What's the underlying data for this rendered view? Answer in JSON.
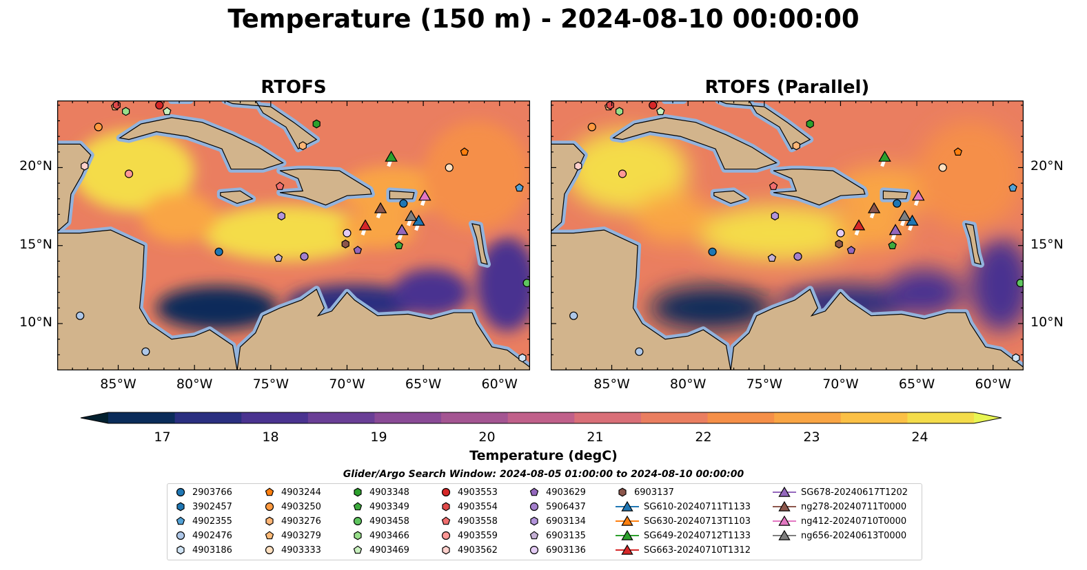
{
  "title": "Temperature (150 m) - 2024-08-10 00:00:00",
  "panels": [
    {
      "title": "RTOFS"
    },
    {
      "title": "RTOFS (Parallel)"
    }
  ],
  "colors": {
    "land": "#d2b48c",
    "shelf": "#93b3dc",
    "deep_dark": "#03202f",
    "colormap": [
      "#03202f",
      "#0b2c5a",
      "#2a2f80",
      "#4a3390",
      "#6a3f96",
      "#8a4a96",
      "#a45592",
      "#c0608a",
      "#d96f78",
      "#ea7e60",
      "#f58f48",
      "#f9a544",
      "#fbc046",
      "#f4dc4a",
      "#e8f553"
    ]
  },
  "chart_data": {
    "type": "heatmap",
    "variable": "Temperature (150 m)",
    "units": "degC",
    "colorbar": {
      "label": "Temperature (degC)",
      "range": [
        16.5,
        24.5
      ],
      "ticks": [
        17,
        18,
        19,
        20,
        21,
        22,
        23,
        24
      ],
      "tick_labels": [
        "17",
        "18",
        "19",
        "20",
        "21",
        "22",
        "23",
        "24"
      ],
      "extend": "both"
    },
    "xaxis": {
      "range": [
        -89,
        -58
      ],
      "ticks": [
        -85,
        -80,
        -75,
        -70,
        -65,
        -60
      ],
      "tick_labels": [
        "85°W",
        "80°W",
        "75°W",
        "70°W",
        "65°W",
        "60°W"
      ]
    },
    "yaxis": {
      "range": [
        7,
        24.3
      ],
      "ticks": [
        10,
        15,
        20
      ],
      "tick_labels": [
        "10°N",
        "15°N",
        "20°N"
      ]
    },
    "search_window": "Glider/Argo Search Window: 2024-08-05 01:00:00 to 2024-08-10 00:00:00",
    "warm_regions": [
      {
        "lon": -84,
        "lat": 19.8,
        "rx": 4,
        "ry": 2.6,
        "level": 0.96
      },
      {
        "lon": -74,
        "lat": 15.8,
        "rx": 5.5,
        "ry": 1.8,
        "level": 0.95
      },
      {
        "lon": -67,
        "lat": 18.5,
        "rx": 3.5,
        "ry": 1.6,
        "level": 0.8
      },
      {
        "lon": -61.5,
        "lat": 19.5,
        "rx": 3.5,
        "ry": 3.5,
        "level": 0.72
      },
      {
        "lon": -81,
        "lat": 16.8,
        "rx": 2.5,
        "ry": 1.6,
        "level": 0.82
      },
      {
        "lon": -68,
        "lat": 16,
        "rx": 2.5,
        "ry": 1.2,
        "level": 0.82
      }
    ],
    "cold_regions": [
      {
        "lon": -78.5,
        "lat": 11,
        "rx": 4,
        "ry": 1.4,
        "level": 0.05
      },
      {
        "lon": -69.5,
        "lat": 11.3,
        "rx": 4.5,
        "ry": 1.2,
        "level": 0.12
      },
      {
        "lon": -64.5,
        "lat": 12,
        "rx": 2.5,
        "ry": 1.5,
        "level": 0.22
      },
      {
        "lon": -59.5,
        "lat": 12.5,
        "rx": 2,
        "ry": 3,
        "level": 0.2
      }
    ],
    "land": [
      {
        "name": "Cuba",
        "points": [
          [
            -84.9,
            21.9
          ],
          [
            -83.5,
            22.8
          ],
          [
            -81.5,
            23.2
          ],
          [
            -79.5,
            22.9
          ],
          [
            -77.5,
            22.1
          ],
          [
            -75.8,
            21.3
          ],
          [
            -74.2,
            20.3
          ],
          [
            -75.5,
            19.9
          ],
          [
            -77.6,
            19.9
          ],
          [
            -78.2,
            21.2
          ],
          [
            -80.5,
            22.0
          ],
          [
            -82.5,
            22.3
          ],
          [
            -84.3,
            21.8
          ]
        ]
      },
      {
        "name": "Hispaniola",
        "points": [
          [
            -74.4,
            19.8
          ],
          [
            -73.2,
            19.9
          ],
          [
            -72.5,
            19.9
          ],
          [
            -70.5,
            19.8
          ],
          [
            -68.5,
            18.6
          ],
          [
            -68.4,
            18.3
          ],
          [
            -70.0,
            18.2
          ],
          [
            -71.4,
            17.6
          ],
          [
            -72.8,
            18.1
          ],
          [
            -74.4,
            18.4
          ],
          [
            -72.9,
            18.5
          ],
          [
            -73.2,
            19.3
          ]
        ]
      },
      {
        "name": "Jamaica",
        "points": [
          [
            -78.3,
            18.4
          ],
          [
            -77.0,
            18.5
          ],
          [
            -76.2,
            18.0
          ],
          [
            -77.2,
            17.7
          ],
          [
            -78.3,
            18.2
          ]
        ]
      },
      {
        "name": "Puerto Rico",
        "points": [
          [
            -67.2,
            18.5
          ],
          [
            -65.6,
            18.4
          ],
          [
            -65.7,
            18.0
          ],
          [
            -67.2,
            18.0
          ]
        ]
      },
      {
        "name": "Lesser Antilles",
        "points": [
          [
            -61.8,
            16.4
          ],
          [
            -61.3,
            16.3
          ],
          [
            -61.0,
            14.5
          ],
          [
            -60.8,
            13.8
          ],
          [
            -61.2,
            13.9
          ],
          [
            -61.5,
            15.5
          ]
        ]
      },
      {
        "name": "Yucatan",
        "points": [
          [
            -89,
            21.5
          ],
          [
            -87.5,
            21.5
          ],
          [
            -86.8,
            20.8
          ],
          [
            -87.4,
            19.5
          ],
          [
            -88.1,
            18.3
          ],
          [
            -88.3,
            16.5
          ],
          [
            -89,
            15.9
          ]
        ]
      },
      {
        "name": "Central America",
        "points": [
          [
            -89,
            15.8
          ],
          [
            -87.5,
            15.8
          ],
          [
            -85.5,
            16.0
          ],
          [
            -83.3,
            15.0
          ],
          [
            -83.4,
            13.0
          ],
          [
            -83.6,
            11.0
          ],
          [
            -83.0,
            10.0
          ],
          [
            -81.5,
            9.0
          ],
          [
            -80.0,
            9.2
          ],
          [
            -79.0,
            9.6
          ],
          [
            -77.5,
            8.6
          ],
          [
            -77.2,
            7.0
          ],
          [
            -89,
            7.0
          ]
        ]
      },
      {
        "name": "South America",
        "points": [
          [
            -77.2,
            7.0
          ],
          [
            -77.0,
            8.5
          ],
          [
            -76.0,
            9.4
          ],
          [
            -75.5,
            10.5
          ],
          [
            -74.4,
            11.0
          ],
          [
            -73.0,
            11.5
          ],
          [
            -72.0,
            12.2
          ],
          [
            -71.5,
            11.0
          ],
          [
            -71.9,
            10.5
          ],
          [
            -71.0,
            10.8
          ],
          [
            -70.0,
            12.0
          ],
          [
            -69.5,
            11.5
          ],
          [
            -68.0,
            10.5
          ],
          [
            -66.0,
            10.6
          ],
          [
            -64.5,
            10.3
          ],
          [
            -63.0,
            10.7
          ],
          [
            -61.8,
            10.7
          ],
          [
            -61.5,
            10.0
          ],
          [
            -60.5,
            8.5
          ],
          [
            -59.5,
            8.3
          ],
          [
            -58,
            7.2
          ],
          [
            -58,
            7.0
          ]
        ]
      },
      {
        "name": "Florida",
        "points": [
          [
            -81.5,
            24.3
          ],
          [
            -80.3,
            24.3
          ],
          [
            -80.9,
            25.0
          ],
          [
            -81.8,
            25.0
          ]
        ]
      },
      {
        "name": "Bahamas",
        "points": [
          [
            -78.0,
            24.3
          ],
          [
            -76.0,
            24.3
          ],
          [
            -75.5,
            23.5
          ],
          [
            -74.0,
            22.6
          ],
          [
            -73.2,
            21.2
          ],
          [
            -72.0,
            21.8
          ],
          [
            -73.5,
            22.9
          ],
          [
            -75.0,
            23.9
          ],
          [
            -77.5,
            24.1
          ]
        ]
      }
    ],
    "platforms": [
      {
        "name": "2903766",
        "type": "argo",
        "marker": "circle",
        "color": "#1f77b4",
        "positions": [
          [
            -78.4,
            14.6
          ],
          [
            -66.3,
            17.7
          ]
        ]
      },
      {
        "name": "3902457",
        "type": "argo",
        "marker": "hexagon",
        "color": "#1f77b4",
        "positions": [
          [
            -58,
            6.5
          ]
        ]
      },
      {
        "name": "4902355",
        "type": "argo",
        "marker": "pentagon",
        "color": "#54a2d6",
        "positions": [
          [
            -58.7,
            18.7
          ]
        ]
      },
      {
        "name": "4902476",
        "type": "argo",
        "marker": "circle",
        "color": "#aec7e8",
        "positions": [
          [
            -87.5,
            10.5
          ],
          [
            -83.2,
            8.2
          ]
        ]
      },
      {
        "name": "4903186",
        "type": "argo",
        "marker": "hexagon",
        "color": "#d0e4f5",
        "positions": [
          [
            -58.5,
            7.8
          ]
        ]
      },
      {
        "name": "4903244",
        "type": "argo",
        "marker": "pentagon",
        "color": "#ff7f0e",
        "positions": [
          [
            -62.3,
            21.0
          ]
        ]
      },
      {
        "name": "4903250",
        "type": "argo",
        "marker": "circle",
        "color": "#ff9a40",
        "positions": [
          [
            -86.3,
            22.6
          ]
        ]
      },
      {
        "name": "4903276",
        "type": "argo",
        "marker": "hexagon",
        "color": "#ffb676",
        "positions": [
          [
            -72.9,
            21.4
          ]
        ]
      },
      {
        "name": "4903279",
        "type": "argo",
        "marker": "pentagon",
        "color": "#ffbb78",
        "positions": [
          [
            -85.2,
            23.9
          ]
        ]
      },
      {
        "name": "4903333",
        "type": "argo",
        "marker": "circle",
        "color": "#ffe0c0",
        "positions": [
          [
            -63.3,
            20.0
          ]
        ]
      },
      {
        "name": "4903348",
        "type": "argo",
        "marker": "hexagon",
        "color": "#2ca02c",
        "positions": [
          [
            -72.0,
            22.8
          ]
        ]
      },
      {
        "name": "4903349",
        "type": "argo",
        "marker": "pentagon",
        "color": "#3daa3d",
        "positions": [
          [
            -66.6,
            15.0
          ]
        ]
      },
      {
        "name": "4903458",
        "type": "argo",
        "marker": "circle",
        "color": "#5fc55f",
        "positions": [
          [
            -58.2,
            12.6
          ]
        ]
      },
      {
        "name": "4903466",
        "type": "argo",
        "marker": "hexagon",
        "color": "#98df8a",
        "positions": [
          [
            -84.5,
            23.6
          ]
        ]
      },
      {
        "name": "4903469",
        "type": "argo",
        "marker": "pentagon",
        "color": "#c8f0be",
        "positions": [
          [
            -81.8,
            23.6
          ]
        ]
      },
      {
        "name": "4903553",
        "type": "argo",
        "marker": "circle",
        "color": "#d62728",
        "positions": [
          [
            -82.3,
            24.0
          ]
        ]
      },
      {
        "name": "4903554",
        "type": "argo",
        "marker": "hexagon",
        "color": "#e04a4a",
        "positions": [
          [
            -85.1,
            24.0
          ]
        ]
      },
      {
        "name": "4903558",
        "type": "argo",
        "marker": "pentagon",
        "color": "#f06e6e",
        "positions": [
          [
            -74.4,
            18.8
          ]
        ]
      },
      {
        "name": "4903559",
        "type": "argo",
        "marker": "circle",
        "color": "#ff9896",
        "positions": [
          [
            -84.3,
            19.6
          ]
        ]
      },
      {
        "name": "4903562",
        "type": "argo",
        "marker": "hexagon",
        "color": "#ffd0cc",
        "positions": [
          [
            -87.2,
            20.1
          ]
        ]
      },
      {
        "name": "4903629",
        "type": "argo",
        "marker": "pentagon",
        "color": "#9467bd",
        "positions": [
          [
            -69.3,
            14.7
          ]
        ]
      },
      {
        "name": "5906437",
        "type": "argo",
        "marker": "circle",
        "color": "#a47fcc",
        "positions": [
          [
            -72.8,
            14.3
          ]
        ]
      },
      {
        "name": "6903134",
        "type": "argo",
        "marker": "hexagon",
        "color": "#b394db",
        "positions": [
          [
            -74.3,
            16.9
          ]
        ]
      },
      {
        "name": "6903135",
        "type": "argo",
        "marker": "pentagon",
        "color": "#c5b0d5",
        "positions": [
          [
            -74.5,
            14.2
          ]
        ]
      },
      {
        "name": "6903136",
        "type": "argo",
        "marker": "circle",
        "color": "#e4ccf5",
        "positions": [
          [
            -70.0,
            15.8
          ]
        ]
      },
      {
        "name": "6903137",
        "type": "argo",
        "marker": "hexagon",
        "color": "#8c564b",
        "positions": [
          [
            -70.1,
            15.1
          ]
        ]
      },
      {
        "name": "SG610-20240711T1133",
        "type": "glider",
        "marker": "triangle",
        "color": "#1f77b4",
        "positions": [
          [
            -65.3,
            16.6
          ]
        ]
      },
      {
        "name": "SG630-20240713T1103",
        "type": "glider",
        "marker": "triangle",
        "color": "#ff7f0e",
        "positions": [
          [
            -66.4,
            16.0
          ]
        ]
      },
      {
        "name": "SG649-20240712T1133",
        "type": "glider",
        "marker": "triangle",
        "color": "#2ca02c",
        "positions": [
          [
            -67.1,
            20.7
          ]
        ]
      },
      {
        "name": "SG663-20240710T1312",
        "type": "glider",
        "marker": "triangle",
        "color": "#d62728",
        "positions": [
          [
            -68.8,
            16.3
          ]
        ]
      },
      {
        "name": "SG678-20240617T1202",
        "type": "glider",
        "marker": "triangle",
        "color": "#9467bd",
        "positions": [
          [
            -66.4,
            16.0
          ]
        ]
      },
      {
        "name": "ng278-20240711T0000",
        "type": "glider",
        "marker": "triangle",
        "color": "#8c564b",
        "positions": [
          [
            -67.8,
            17.4
          ]
        ]
      },
      {
        "name": "ng412-20240710T0000",
        "type": "glider",
        "marker": "triangle",
        "color": "#e377c2",
        "positions": [
          [
            -64.9,
            18.2
          ]
        ]
      },
      {
        "name": "ng656-20240613T0000",
        "type": "glider",
        "marker": "triangle",
        "color": "#7f7f7f",
        "positions": [
          [
            -65.8,
            16.9
          ]
        ]
      }
    ]
  }
}
